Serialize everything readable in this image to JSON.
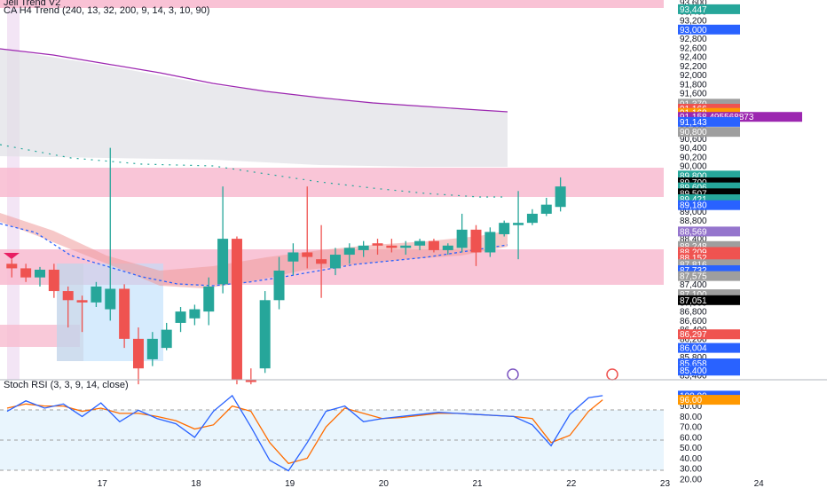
{
  "legends": {
    "indicator1": "Jell Trend V2",
    "indicator2": "CA H4 Trend (240, 13, 32, 200, 9, 14, 3, 10, 90)",
    "oscillator": "Stoch RSI (3, 3, 9, 14, close)"
  },
  "colors": {
    "up": "#26a69a",
    "down": "#ef5350",
    "zone_pink": "#f8bbd0",
    "osc_k": "#2962ff",
    "osc_d": "#ff6d00",
    "ma_purple": "#9c27b0",
    "background": "#ffffff"
  },
  "chart_data": [
    {
      "type": "candlestick",
      "title": "",
      "price_axis_ticks": [
        "85,400",
        "85,600",
        "85,800",
        "86,000",
        "86,200",
        "86,400",
        "86,600",
        "86,800",
        "87,000",
        "87,200",
        "87,400",
        "87,600",
        "87,800",
        "88,000",
        "88,200",
        "88,400",
        "88,600",
        "88,800",
        "89,000",
        "89,200",
        "89,400",
        "89,600",
        "89,800",
        "90,000",
        "90,200",
        "90,400",
        "90,600",
        "90,800",
        "91,000",
        "91,200",
        "91,400",
        "91,600",
        "91,800",
        "92,000",
        "92,200",
        "92,400",
        "92,600",
        "92,800",
        "93,000",
        "93,200",
        "93,400",
        "93,600"
      ],
      "time_axis_ticks": [
        "17",
        "18",
        "19",
        "20",
        "21",
        "22",
        "23",
        "24"
      ],
      "ylim": [
        85300,
        93650
      ],
      "candles": [
        {
          "x": 16.05,
          "o": 87.85,
          "h": 87.95,
          "l": 87.55,
          "c": 87.75
        },
        {
          "x": 16.2,
          "o": 87.75,
          "h": 87.85,
          "l": 87.45,
          "c": 87.55
        },
        {
          "x": 16.35,
          "o": 87.55,
          "h": 87.78,
          "l": 87.35,
          "c": 87.72
        },
        {
          "x": 16.5,
          "o": 87.72,
          "h": 87.85,
          "l": 87.1,
          "c": 87.25
        },
        {
          "x": 16.65,
          "o": 87.25,
          "h": 87.35,
          "l": 86.45,
          "c": 87.05
        },
        {
          "x": 16.8,
          "o": 87.05,
          "h": 87.15,
          "l": 86.35,
          "c": 87.0
        },
        {
          "x": 16.95,
          "o": 87.0,
          "h": 87.45,
          "l": 86.9,
          "c": 87.35
        },
        {
          "x": 17.1,
          "o": 86.85,
          "h": 90.4,
          "l": 86.6,
          "c": 87.3
        },
        {
          "x": 17.25,
          "o": 87.3,
          "h": 87.4,
          "l": 86.0,
          "c": 86.2
        },
        {
          "x": 17.4,
          "o": 86.2,
          "h": 86.45,
          "l": 85.2,
          "c": 85.55
        },
        {
          "x": 17.55,
          "o": 85.75,
          "h": 86.35,
          "l": 85.6,
          "c": 86.2
        },
        {
          "x": 17.7,
          "o": 86.0,
          "h": 86.55,
          "l": 85.95,
          "c": 86.4
        },
        {
          "x": 17.85,
          "o": 86.55,
          "h": 86.9,
          "l": 86.35,
          "c": 86.8
        },
        {
          "x": 18.0,
          "o": 86.65,
          "h": 86.95,
          "l": 86.5,
          "c": 86.85
        },
        {
          "x": 18.15,
          "o": 86.8,
          "h": 87.55,
          "l": 86.5,
          "c": 87.35
        },
        {
          "x": 18.3,
          "o": 87.4,
          "h": 89.55,
          "l": 87.2,
          "c": 88.4
        },
        {
          "x": 18.45,
          "o": 88.4,
          "h": 88.45,
          "l": 85.2,
          "c": 85.3
        },
        {
          "x": 18.6,
          "o": 85.3,
          "h": 85.55,
          "l": 85.2,
          "c": 85.25
        },
        {
          "x": 18.75,
          "o": 85.55,
          "h": 87.25,
          "l": 85.45,
          "c": 87.05
        },
        {
          "x": 18.9,
          "o": 87.05,
          "h": 88.0,
          "l": 86.85,
          "c": 87.7
        },
        {
          "x": 19.05,
          "o": 87.9,
          "h": 88.3,
          "l": 87.6,
          "c": 88.1
        },
        {
          "x": 19.2,
          "o": 88.1,
          "h": 89.55,
          "l": 87.75,
          "c": 88.0
        },
        {
          "x": 19.35,
          "o": 87.95,
          "h": 88.7,
          "l": 87.1,
          "c": 87.85
        },
        {
          "x": 19.5,
          "o": 87.75,
          "h": 88.2,
          "l": 87.6,
          "c": 88.05
        },
        {
          "x": 19.65,
          "o": 88.05,
          "h": 88.3,
          "l": 87.85,
          "c": 88.2
        },
        {
          "x": 19.8,
          "o": 88.15,
          "h": 88.35,
          "l": 88.0,
          "c": 88.25
        },
        {
          "x": 19.95,
          "o": 88.3,
          "h": 88.4,
          "l": 88.05,
          "c": 88.25
        },
        {
          "x": 20.1,
          "o": 88.25,
          "h": 88.4,
          "l": 88.1,
          "c": 88.2
        },
        {
          "x": 20.25,
          "o": 88.2,
          "h": 88.35,
          "l": 88.05,
          "c": 88.25
        },
        {
          "x": 20.4,
          "o": 88.25,
          "h": 88.4,
          "l": 88.15,
          "c": 88.35
        },
        {
          "x": 20.55,
          "o": 88.35,
          "h": 88.4,
          "l": 88.1,
          "c": 88.15
        },
        {
          "x": 20.7,
          "o": 88.15,
          "h": 88.3,
          "l": 88.05,
          "c": 88.25
        },
        {
          "x": 20.85,
          "o": 88.2,
          "h": 88.95,
          "l": 88.1,
          "c": 88.6
        },
        {
          "x": 21.0,
          "o": 88.6,
          "h": 88.7,
          "l": 87.8,
          "c": 88.1
        },
        {
          "x": 21.15,
          "o": 88.1,
          "h": 88.65,
          "l": 88.0,
          "c": 88.55
        },
        {
          "x": 21.3,
          "o": 88.5,
          "h": 88.8,
          "l": 88.45,
          "c": 88.75
        },
        {
          "x": 21.45,
          "o": 88.7,
          "h": 89.45,
          "l": 87.95,
          "c": 88.75
        },
        {
          "x": 21.6,
          "o": 88.75,
          "h": 89.05,
          "l": 88.7,
          "c": 88.95
        },
        {
          "x": 21.75,
          "o": 88.95,
          "h": 89.3,
          "l": 88.9,
          "c": 89.15
        },
        {
          "x": 21.9,
          "o": 89.1,
          "h": 89.75,
          "l": 89.0,
          "c": 89.55
        }
      ]
    },
    {
      "type": "line",
      "title": "Stoch RSI (3, 3, 9, 14, close)",
      "y_axis_ticks": [
        "20.00",
        "30.00",
        "40.00",
        "50.00",
        "60.00",
        "70.00",
        "80.00",
        "90.00"
      ],
      "time_axis_ticks": [
        "17",
        "18",
        "19",
        "20",
        "21",
        "22",
        "23",
        "24"
      ],
      "ylim": [
        20,
        105
      ],
      "x": [
        16.0,
        16.2,
        16.4,
        16.6,
        16.8,
        17.0,
        17.2,
        17.4,
        17.6,
        17.8,
        18.0,
        18.2,
        18.4,
        18.6,
        18.8,
        19.0,
        19.2,
        19.4,
        19.6,
        19.8,
        20.0,
        20.2,
        20.4,
        20.6,
        20.8,
        21.0,
        21.2,
        21.4,
        21.6,
        21.8,
        22.0,
        22.2,
        22.35
      ],
      "series": [
        {
          "name": "K",
          "values": [
            85,
            95,
            88,
            92,
            80,
            93,
            75,
            86,
            78,
            73,
            60,
            85,
            100,
            70,
            38,
            28,
            55,
            85,
            90,
            75,
            78,
            80,
            82,
            84,
            83,
            82,
            81,
            80,
            72,
            52,
            82,
            98,
            100
          ]
        },
        {
          "name": "D",
          "values": [
            88,
            92,
            90,
            90,
            85,
            88,
            83,
            83,
            80,
            76,
            68,
            72,
            90,
            85,
            55,
            35,
            40,
            70,
            88,
            83,
            78,
            79,
            81,
            83,
            83,
            82,
            81,
            80,
            78,
            55,
            62,
            85,
            96
          ]
        }
      ]
    }
  ],
  "price_tags": [
    {
      "label": "93,447",
      "price": 93.447,
      "color": "#26a69a"
    },
    {
      "label": "93,000",
      "price": 93.0,
      "color": "#2962ff"
    },
    {
      "label": "91,370",
      "price": 91.37,
      "color": "#9e9e9e"
    },
    {
      "label": "91,166",
      "price": 91.26,
      "color": "#ef5350"
    },
    {
      "label": "91,168",
      "price": 91.168,
      "color": "#ff9800"
    },
    {
      "label": "91,158.495568873",
      "price": 91.08,
      "color": "#9c27b0"
    },
    {
      "label": "91,143",
      "price": 90.97,
      "color": "#2962ff"
    },
    {
      "label": "90,800",
      "price": 90.75,
      "color": "#9e9e9e"
    },
    {
      "label": "89,800",
      "price": 89.79,
      "color": "#26a69a"
    },
    {
      "label": "89,700",
      "price": 89.64,
      "color": "#000000"
    },
    {
      "label": "89,606",
      "price": 89.53,
      "color": "#26a69a"
    },
    {
      "label": "89,507",
      "price": 89.4,
      "color": "#000000"
    },
    {
      "label": "89,421",
      "price": 89.27,
      "color": "#26a69a"
    },
    {
      "label": "89,180",
      "price": 89.14,
      "color": "#2962ff"
    },
    {
      "label": "88,569",
      "price": 88.56,
      "color": "#9575cd"
    },
    {
      "label": "88,248",
      "price": 88.24,
      "color": "#9e9e9e"
    },
    {
      "label": "88,209",
      "price": 88.11,
      "color": "#ef5350"
    },
    {
      "label": "88,152",
      "price": 87.98,
      "color": "#ef5350"
    },
    {
      "label": "87,816",
      "price": 87.84,
      "color": "#9e9e9e"
    },
    {
      "label": "87,732",
      "price": 87.71,
      "color": "#2962ff"
    },
    {
      "label": "87,575",
      "price": 87.58,
      "color": "#9e9e9e"
    },
    {
      "label": "87,100",
      "price": 87.18,
      "color": "#9e9e9e"
    },
    {
      "label": "87,051",
      "price": 87.05,
      "color": "#000000"
    },
    {
      "label": "86,297",
      "price": 86.3,
      "color": "#ef5350"
    },
    {
      "label": "86,004",
      "price": 86.0,
      "color": "#2962ff"
    },
    {
      "label": "85,658",
      "price": 85.66,
      "color": "#2962ff"
    },
    {
      "label": "85,400",
      "price": 85.5,
      "color": "#2962ff"
    }
  ],
  "osc_tags": [
    {
      "label": "100.00",
      "value": 100,
      "color": "#2962ff"
    },
    {
      "label": "96.00",
      "value": 96,
      "color": "#ff9800"
    }
  ]
}
